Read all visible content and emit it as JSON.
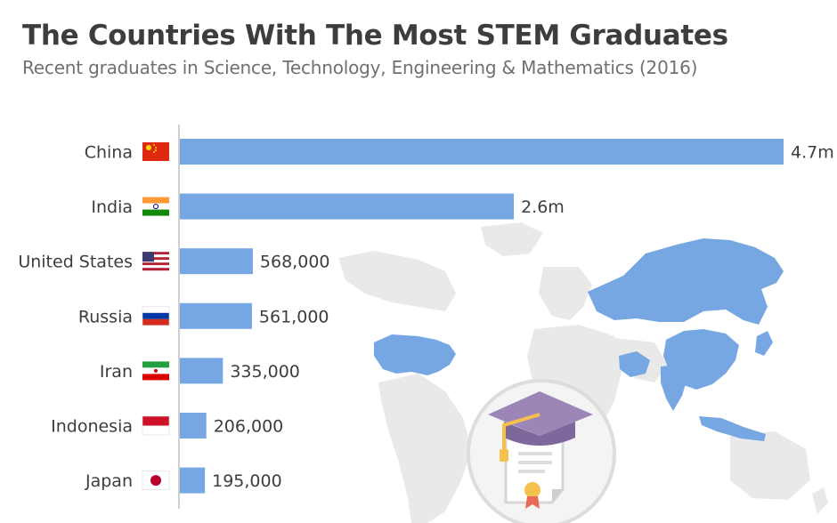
{
  "header": {
    "title": "The Countries With The Most STEM Graduates",
    "subtitle": "Recent graduates in Science, Technology, Engineering & Mathematics (2016)"
  },
  "colors": {
    "bar": "#76a7e3",
    "map_highlight": "#76a7e3",
    "map_land": "#e9e9e9",
    "axis": "#cfcfcf",
    "text": "#3d3d3d"
  },
  "icons": [
    "graduation-cap-icon",
    "diploma-icon",
    "world-map-icon"
  ],
  "chart_data": {
    "type": "bar",
    "orientation": "horizontal",
    "title": "The Countries With The Most STEM Graduates",
    "subtitle": "Recent graduates in Science, Technology, Engineering & Mathematics (2016)",
    "categories": [
      "China",
      "India",
      "United States",
      "Russia",
      "Iran",
      "Indonesia",
      "Japan"
    ],
    "values": [
      4700000,
      2600000,
      568000,
      561000,
      335000,
      206000,
      195000
    ],
    "value_labels": [
      "4.7m",
      "2.6m",
      "568,000",
      "561,000",
      "335,000",
      "206,000",
      "195,000"
    ],
    "flags": [
      "china-flag-icon",
      "india-flag-icon",
      "usa-flag-icon",
      "russia-flag-icon",
      "iran-flag-icon",
      "indonesia-flag-icon",
      "japan-flag-icon"
    ],
    "xlim": [
      0,
      4700000
    ],
    "grid": false,
    "legend": "none"
  }
}
